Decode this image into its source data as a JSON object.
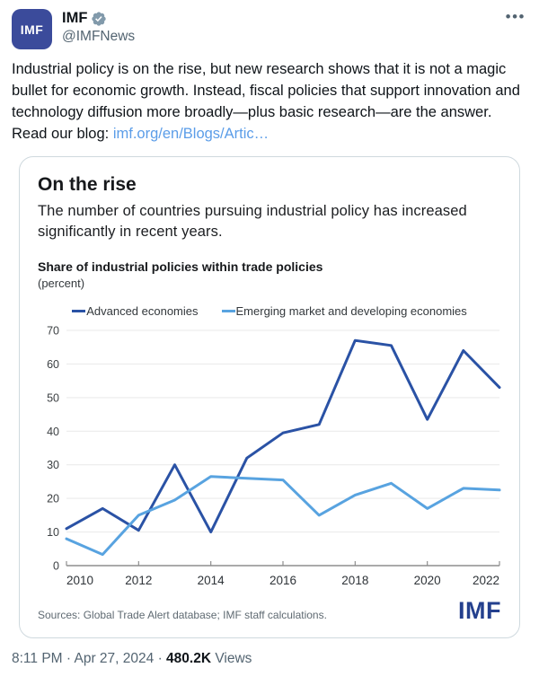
{
  "colors": {
    "avatar_bg": "#3b4b9b",
    "badge_gray": "#829aab",
    "link_blue": "#5b9de8",
    "imf_logo_blue": "#24408e",
    "advanced_line": "#2a52a5",
    "emerging_line": "#58a3e0",
    "gray_text": "#536471"
  },
  "header": {
    "avatar_text": "IMF",
    "display_name": "IMF",
    "handle": "@IMFNews",
    "more_icon": "•••"
  },
  "tweet": {
    "text": "Industrial policy is on the rise, but new research shows that it is not a magic bullet for economic growth. Instead, fiscal policies that support innovation and technology diffusion more broadly—plus basic research—are the answer. Read our blog: ",
    "link_text": "imf.org/en/Blogs/Artic…"
  },
  "card": {
    "title": "On the rise",
    "subtitle": "The number of countries pursuing industrial policy has increased significantly in recent years.",
    "sources": "Sources: Global Trade Alert database; IMF staff calculations.",
    "logo_text": "IMF"
  },
  "chart_data": {
    "type": "line",
    "title": "Share of industrial policies within trade policies",
    "subtitle": "(percent)",
    "x": [
      2010,
      2011,
      2012,
      2013,
      2014,
      2015,
      2016,
      2017,
      2018,
      2019,
      2020,
      2021,
      2022
    ],
    "series": [
      {
        "name": "Advanced economies",
        "color": "#2a52a5",
        "values": [
          11,
          17,
          10.5,
          30,
          10,
          32,
          39.5,
          42,
          67,
          65.5,
          43.5,
          64,
          53
        ]
      },
      {
        "name": "Emerging market and developing economies",
        "color": "#58a3e0",
        "values": [
          8,
          3.3,
          15,
          19.5,
          26.5,
          26,
          25.5,
          15,
          21,
          24.5,
          17,
          23,
          22.5
        ]
      }
    ],
    "ylim": [
      0,
      70
    ],
    "ytick_step": 10,
    "xtick_every": 2,
    "grid": true,
    "legend_position": "top"
  },
  "footer": {
    "time_date": "8:11 PM · Apr 27, 2024",
    "separator": " · ",
    "views_count": "480.2K",
    "views_label": " Views"
  }
}
